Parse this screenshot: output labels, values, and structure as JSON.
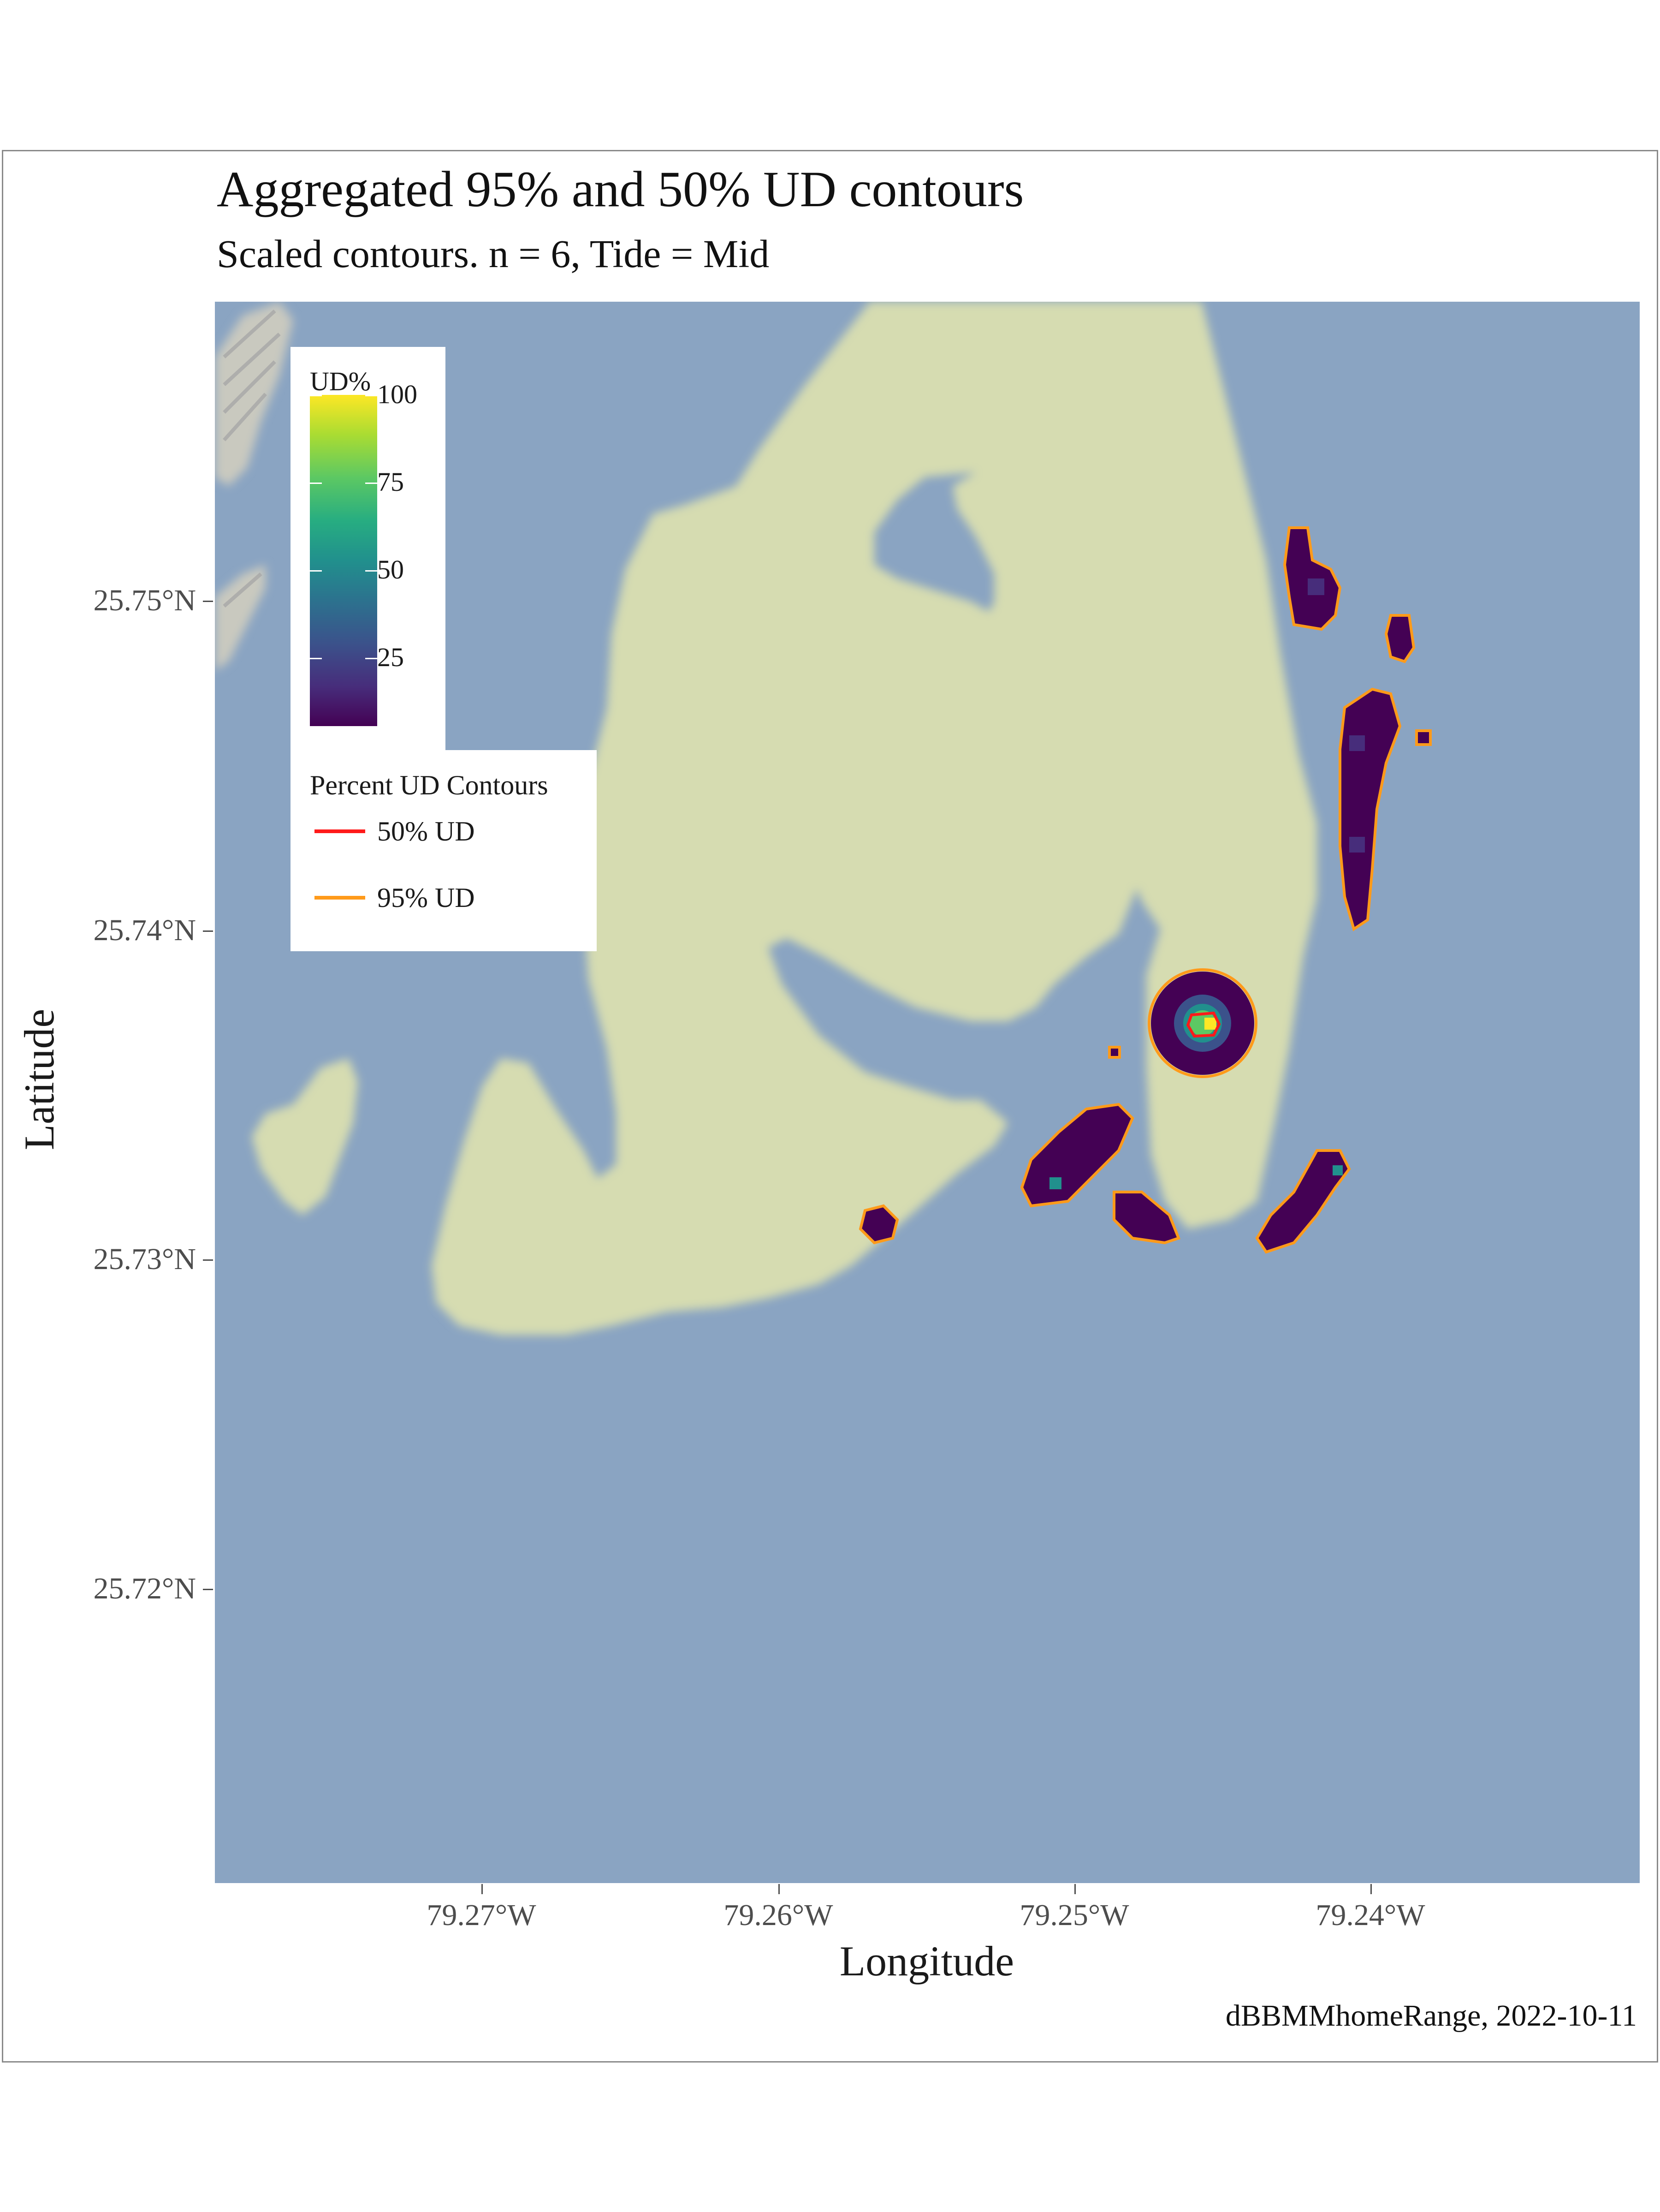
{
  "map": {
    "title": "Aggregated 95% and 50% UD contours",
    "subtitle": "Scaled contours. n = 6, Tide = Mid",
    "x_axis_label": "Longitude",
    "y_axis_label": "Latitude",
    "caption": "dBBMMhomeRange, 2022-10-11",
    "x_ticks": [
      "79.27°W",
      "79.26°W",
      "79.25°W",
      "79.24°W"
    ],
    "y_ticks": [
      "25.75°N",
      "25.74°N",
      "25.73°N",
      "25.72°N"
    ],
    "colors": {
      "water": "#8aa4c2",
      "land": "#d6dcb1",
      "contour_50": "#ff1a1a",
      "contour_95": "#ff9a1a",
      "ud_low": "#440154",
      "ud_high": "#fde725"
    }
  },
  "legend_ud": {
    "title": "UD%",
    "labels": [
      "100",
      "75",
      "50",
      "25"
    ]
  },
  "legend_contours": {
    "title": "Percent UD Contours",
    "items": [
      {
        "label": "50% UD",
        "color": "#ff1a1a"
      },
      {
        "label": "95% UD",
        "color": "#ff9a1a"
      }
    ]
  }
}
